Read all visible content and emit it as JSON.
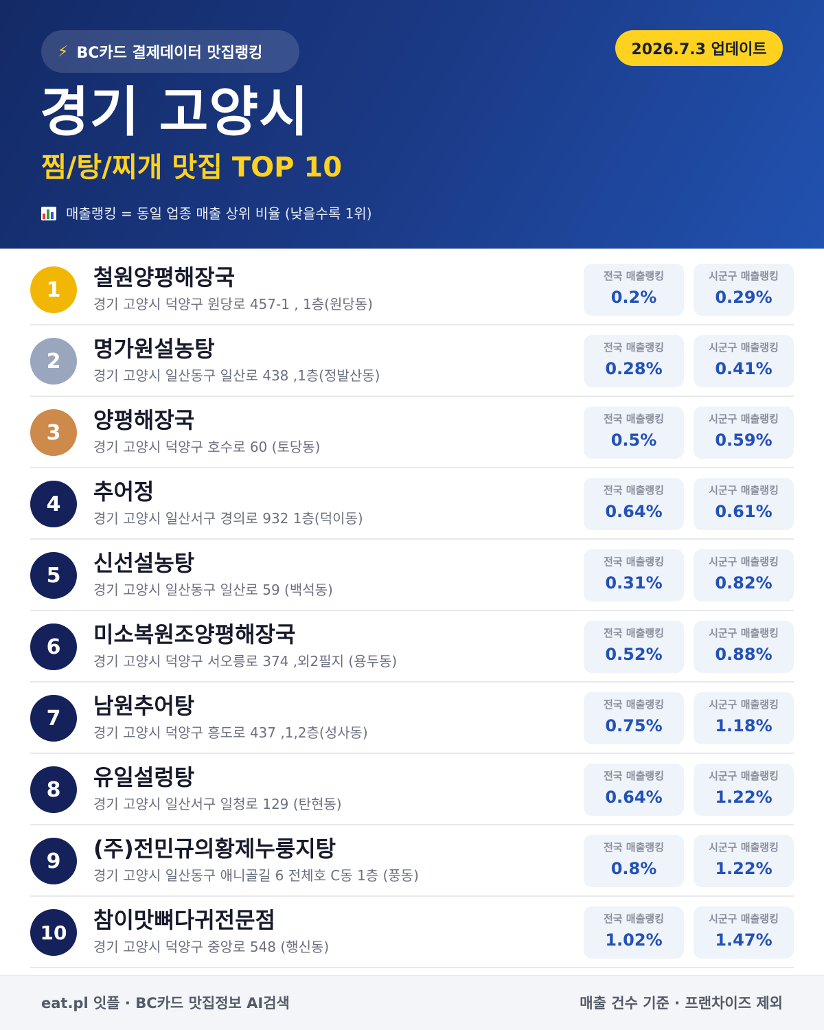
{
  "header": {
    "source_label": "BC카드 결제데이터 맛집랭킹",
    "source_icon": "lightning-icon",
    "update_label": "2026.7.3 업데이트",
    "region": "경기 고양시",
    "subtitle": "찜/탕/찌개 맛집 TOP 10",
    "note_icon": "bar-chart-icon",
    "note": "매출랭킹 = 동일 업종 매출 상위 비율 (낮을수록 1위)"
  },
  "colors": {
    "gold": "#f2b705",
    "silver": "#9aa6bd",
    "bronze": "#cd8a4b",
    "navy": "#14215a",
    "accent": "#ffd21f",
    "value": "#2251b8"
  },
  "stat_labels": {
    "national": "전국 매출랭킹",
    "district": "시군구 매출랭킹"
  },
  "items": [
    {
      "rank": "1",
      "name": "철원양평해장국",
      "address": "경기 고양시 덕양구 원당로 457-1 , 1층(원당동)",
      "national": "0.2%",
      "district": "0.29%"
    },
    {
      "rank": "2",
      "name": "명가원설농탕",
      "address": "경기 고양시 일산동구 일산로 438 ,1층(정발산동)",
      "national": "0.28%",
      "district": "0.41%"
    },
    {
      "rank": "3",
      "name": "양평해장국",
      "address": "경기 고양시 덕양구 호수로 60 (토당동)",
      "national": "0.5%",
      "district": "0.59%"
    },
    {
      "rank": "4",
      "name": "추어정",
      "address": "경기 고양시 일산서구 경의로 932 1층(덕이동)",
      "national": "0.64%",
      "district": "0.61%"
    },
    {
      "rank": "5",
      "name": "신선설농탕",
      "address": "경기 고양시 일산동구 일산로 59 (백석동)",
      "national": "0.31%",
      "district": "0.82%"
    },
    {
      "rank": "6",
      "name": "미소복원조양평해장국",
      "address": "경기 고양시 덕양구 서오릉로 374 ,외2필지 (용두동)",
      "national": "0.52%",
      "district": "0.88%"
    },
    {
      "rank": "7",
      "name": "남원추어탕",
      "address": "경기 고양시 덕양구 흥도로 437 ,1,2층(성사동)",
      "national": "0.75%",
      "district": "1.18%"
    },
    {
      "rank": "8",
      "name": "유일설렁탕",
      "address": "경기 고양시 일산서구 일청로 129 (탄현동)",
      "national": "0.64%",
      "district": "1.22%"
    },
    {
      "rank": "9",
      "name": "(주)전민규의황제누룽지탕",
      "address": "경기 고양시 일산동구 애니골길 6 전체호 C동 1층 (풍동)",
      "national": "0.8%",
      "district": "1.22%"
    },
    {
      "rank": "10",
      "name": "참이맛뼈다귀전문점",
      "address": "경기 고양시 덕양구 중앙로 548 (행신동)",
      "national": "1.02%",
      "district": "1.47%"
    }
  ],
  "footer": {
    "left": "eat.pl 잇플 · BC카드 맛집정보 AI검색",
    "right": "매출 건수 기준 · 프랜차이즈 제외"
  }
}
